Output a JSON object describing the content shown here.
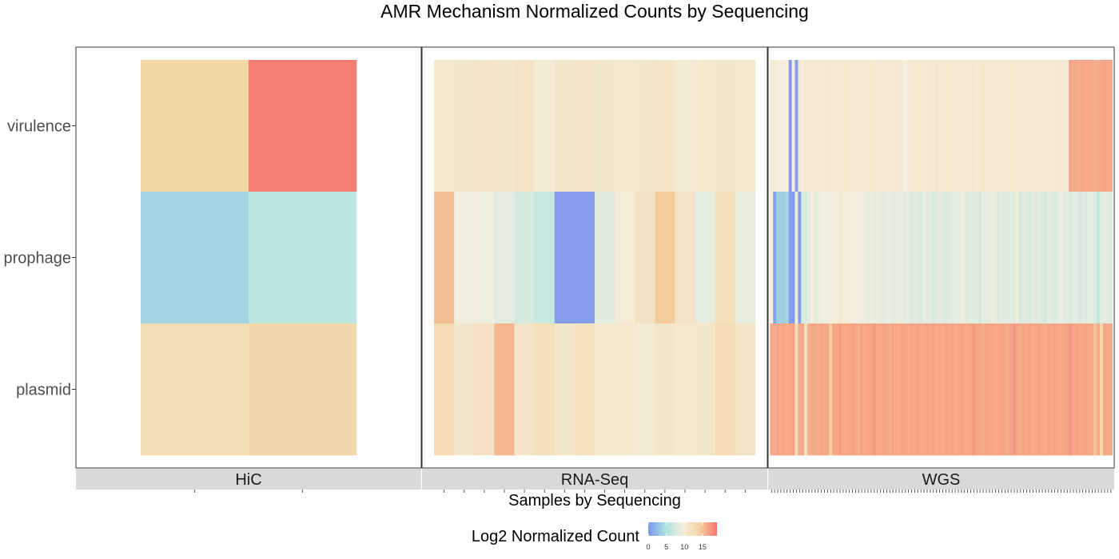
{
  "chart_data": {
    "type": "heatmap",
    "title": "AMR Mechanism Normalized Counts by Sequencing",
    "xlabel": "Samples by Sequencing",
    "ylabel": "",
    "rows": [
      "virulence",
      "prophage",
      "plasmid"
    ],
    "color_scale": {
      "title": "Log2 Normalized Count",
      "ticks": [
        0,
        5,
        10,
        15
      ],
      "range": [
        0,
        19
      ],
      "colors": [
        "#7f94ef",
        "#a8e2df",
        "#f4efde",
        "#f3d29f",
        "#f8746f"
      ]
    },
    "panels": [
      {
        "name": "HiC",
        "values": {
          "virulence": [
            13.5,
            18.5
          ],
          "prophage": [
            4.0,
            6.0
          ],
          "plasmid": [
            12.5,
            13.2
          ]
        }
      },
      {
        "name": "RNA-Seq",
        "values": {
          "virulence": [
            10.6,
            10.9,
            11.1,
            10.9,
            11.4,
            10.1,
            11.0,
            11.3,
            10.9,
            10.6,
            11.0,
            11.2,
            10.2,
            10.7,
            11.0,
            10.7
          ],
          "prophage": [
            15.2,
            9.4,
            9.1,
            8.5,
            7.5,
            6.5,
            0.5,
            0.5,
            8.3,
            10.0,
            11.5,
            14.5,
            11.4,
            8.6,
            12.2,
            8.8
          ],
          "plasmid": [
            12.7,
            11.0,
            11.6,
            15.6,
            11.1,
            12.2,
            11.0,
            11.8,
            10.7,
            10.6,
            10.2,
            11.0,
            10.6,
            11.0,
            12.7,
            11.3
          ]
        }
      },
      {
        "name": "WGS",
        "values": {
          "virulence": [
            10.1,
            10.3,
            9.7,
            9.5,
            9.4,
            9.5,
            0.3,
            9.9,
            0.6,
            10.8,
            9.9,
            10.5,
            10.6,
            10.2,
            10.5,
            10.3,
            10.7,
            10.4,
            10.6,
            10.5,
            10.3,
            10.1,
            10.3,
            10.7,
            10.6,
            10.4,
            10.6,
            10.4,
            10.5,
            10.2,
            10.7,
            10.3,
            10.6,
            10.8,
            10.1,
            10.4,
            10.6,
            10.2,
            10.7,
            10.3,
            10.5,
            10.6,
            10.3,
            9.6,
            10.2,
            10.5,
            10.6,
            10.4,
            10.7,
            10.2,
            10.5,
            10.6,
            10.3,
            10.8,
            10.4,
            10.2,
            10.5,
            10.7,
            10.4,
            10.3,
            10.6,
            10.5,
            10.3,
            10.7,
            10.4,
            10.6,
            10.2,
            10.5,
            10.8,
            10.4,
            10.6,
            10.3,
            10.5,
            10.7,
            10.4,
            10.5,
            10.3,
            10.6,
            10.4,
            10.7,
            10.5,
            10.2,
            10.6,
            10.4,
            10.5,
            10.6,
            10.4,
            10.3,
            10.7,
            10.5,
            10.3,
            10.6,
            10.5,
            10.6,
            10.4,
            10.5,
            16.5,
            16.3,
            16.4,
            16.1,
            16.5,
            16.2,
            16.4,
            16.3,
            16.0,
            16.2,
            16.4,
            16.6,
            16.3,
            16.5
          ],
          "prophage": [
            9.7,
            1.0,
            3.5,
            3.6,
            3.6,
            4.0,
            0.5,
            0.3,
            9.2,
            0.5,
            7.9,
            7.5,
            8.5,
            9.7,
            8.5,
            8.8,
            9.2,
            9.7,
            9.4,
            9.6,
            9.9,
            9.9,
            10.3,
            10.0,
            9.8,
            9.7,
            9.5,
            9.6,
            9.5,
            9.3,
            9.2,
            8.9,
            9.1,
            8.7,
            9.2,
            8.6,
            8.4,
            8.6,
            8.9,
            8.3,
            8.5,
            8.9,
            8.7,
            8.4,
            8.8,
            7.9,
            8.6,
            8.3,
            7.7,
            8.8,
            8.4,
            8.5,
            7.6,
            8.4,
            8.7,
            8.2,
            7.7,
            8.3,
            8.4,
            8.6,
            8.5,
            9.0,
            8.6,
            8.0,
            8.7,
            8.1,
            8.3,
            7.4,
            8.6,
            8.5,
            8.3,
            9.1,
            8.6,
            7.8,
            8.6,
            8.1,
            8.3,
            8.4,
            8.1,
            9.0,
            7.3,
            8.4,
            8.1,
            7.7,
            8.5,
            8.2,
            8.4,
            7.9,
            7.5,
            8.8,
            8.1,
            7.8,
            8.5,
            9.0,
            8.4,
            8.1,
            7.7,
            8.3,
            8.6,
            7.1,
            8.2,
            7.9,
            8.6,
            8.4,
            7.7,
            6.2,
            8.4,
            8.9,
            8.5,
            7.9
          ],
          "prophage_note": "",
          "plasmid": [
            16.5,
            16.2,
            16.6,
            16.3,
            16.5,
            16.1,
            16.4,
            16.8,
            12.3,
            16.3,
            16.4,
            12.0,
            16.0,
            16.5,
            16.3,
            16.1,
            16.6,
            16.4,
            16.2,
            14.3,
            16.5,
            16.4,
            17.0,
            16.3,
            16.2,
            16.5,
            16.8,
            16.4,
            16.1,
            16.6,
            16.3,
            16.7,
            16.5,
            17.2,
            16.4,
            16.3,
            16.8,
            16.5,
            16.1,
            16.6,
            16.4,
            16.2,
            16.8,
            16.5,
            16.3,
            16.6,
            16.4,
            16.7,
            16.3,
            16.5,
            16.6,
            16.4,
            16.8,
            16.2,
            16.5,
            16.3,
            16.7,
            16.4,
            16.6,
            16.2,
            16.5,
            16.8,
            16.4,
            16.3,
            16.6,
            17.1,
            16.4,
            16.5,
            16.2,
            16.7,
            16.4,
            16.6,
            16.3,
            16.5,
            16.8,
            16.4,
            16.2,
            16.6,
            17.2,
            16.5,
            16.3,
            16.7,
            16.4,
            16.6,
            16.2,
            16.5,
            16.7,
            16.4,
            16.3,
            16.6,
            16.5,
            16.8,
            16.4,
            16.2,
            16.5,
            16.7,
            17.3,
            16.4,
            16.6,
            16.3,
            16.5,
            16.8,
            16.4,
            16.5,
            15.0,
            16.3,
            13.6,
            16.5,
            16.2,
            16.4
          ]
        }
      }
    ]
  }
}
